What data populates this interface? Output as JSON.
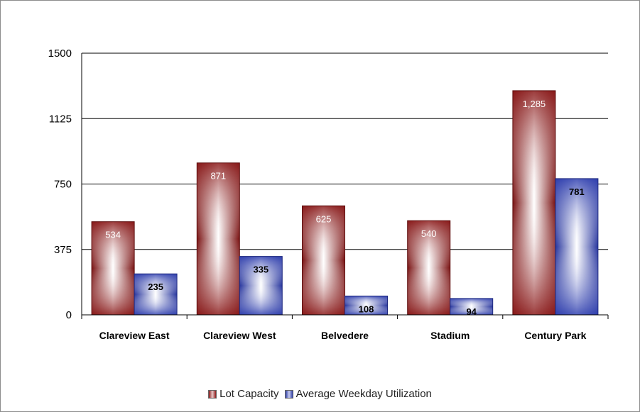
{
  "chart_data": {
    "type": "bar",
    "categories": [
      "Clareview East",
      "Clareview West",
      "Belvedere",
      "Stadium",
      "Century Park"
    ],
    "series": [
      {
        "name": "Lot Capacity",
        "values": [
          534,
          871,
          625,
          540,
          1285
        ],
        "labels": [
          "534",
          "871",
          "625",
          "540",
          "1,285"
        ],
        "color": "#8b1a1a"
      },
      {
        "name": "Average Weekday Utilization",
        "values": [
          235,
          335,
          108,
          94,
          781
        ],
        "labels": [
          "235",
          "335",
          "108",
          "94",
          "781"
        ],
        "color": "#2e3ea8"
      }
    ],
    "y_ticks": [
      "0",
      "375",
      "750",
      "1125",
      "1500"
    ],
    "ylim": [
      0,
      1500
    ],
    "grid": true,
    "legend_position": "bottom"
  }
}
